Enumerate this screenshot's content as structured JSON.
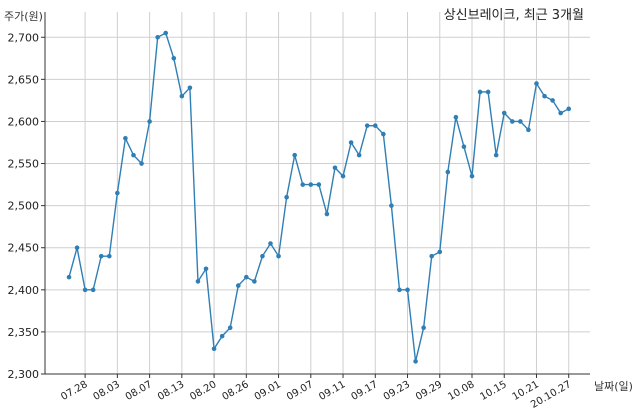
{
  "chart_data": {
    "type": "line",
    "title": "상신브레이크, 최근 3개월",
    "ylabel": "주가(원)",
    "xlabel": "날짜(일)",
    "ylim": [
      2300,
      2730
    ],
    "yticks": [
      2300,
      2350,
      2400,
      2450,
      2500,
      2550,
      2600,
      2650,
      2700
    ],
    "ytick_labels": [
      "2,300",
      "2,350",
      "2,400",
      "2,450",
      "2,500",
      "2,550",
      "2,600",
      "2,650",
      "2,700"
    ],
    "grid": true,
    "line_color": "#2f7fb5",
    "xtick_labels": [
      "07.28",
      "08.03",
      "08.07",
      "08.13",
      "08.20",
      "08.26",
      "09.01",
      "09.07",
      "09.11",
      "09.17",
      "09.23",
      "09.29",
      "10.08",
      "10.15",
      "10.21",
      "20.10.27"
    ],
    "xtick_indices": [
      2,
      6,
      10,
      14,
      18,
      22,
      26,
      30,
      34,
      38,
      42,
      46,
      50,
      54,
      58,
      62
    ],
    "series": [
      {
        "values": [
          2415,
          2450,
          2400,
          2400,
          2440,
          2440,
          2515,
          2580,
          2560,
          2550,
          2600,
          2700,
          2705,
          2675,
          2630,
          2640,
          2410,
          2425,
          2330,
          2345,
          2355,
          2405,
          2415,
          2410,
          2440,
          2455,
          2440,
          2510,
          2560,
          2525,
          2525,
          2525,
          2490,
          2545,
          2535,
          2575,
          2560,
          2595,
          2595,
          2585,
          2500,
          2400,
          2400,
          2315,
          2355,
          2440,
          2445,
          2540,
          2605,
          2570,
          2535,
          2635,
          2635,
          2560,
          2610,
          2600,
          2600,
          2590,
          2645,
          2630,
          2625,
          2610,
          2615
        ]
      }
    ]
  }
}
